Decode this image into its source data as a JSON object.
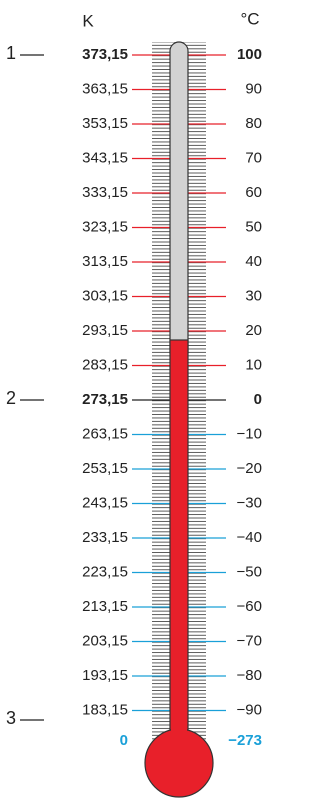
{
  "header": {
    "kelvin_label": "K",
    "celsius_label": "°C"
  },
  "markers": [
    "1",
    "2",
    "3"
  ],
  "rows": [
    {
      "kelvin": "373,15",
      "celsius": "100"
    },
    {
      "kelvin": "363,15",
      "celsius": "90"
    },
    {
      "kelvin": "353,15",
      "celsius": "80"
    },
    {
      "kelvin": "343,15",
      "celsius": "70"
    },
    {
      "kelvin": "333,15",
      "celsius": "60"
    },
    {
      "kelvin": "323,15",
      "celsius": "50"
    },
    {
      "kelvin": "313,15",
      "celsius": "40"
    },
    {
      "kelvin": "303,15",
      "celsius": "30"
    },
    {
      "kelvin": "293,15",
      "celsius": "20"
    },
    {
      "kelvin": "283,15",
      "celsius": "10"
    },
    {
      "kelvin": "273,15",
      "celsius": "0"
    },
    {
      "kelvin": "263,15",
      "celsius": "−10"
    },
    {
      "kelvin": "253,15",
      "celsius": "−20"
    },
    {
      "kelvin": "243,15",
      "celsius": "−30"
    },
    {
      "kelvin": "233,15",
      "celsius": "−40"
    },
    {
      "kelvin": "223,15",
      "celsius": "−50"
    },
    {
      "kelvin": "213,15",
      "celsius": "−60"
    },
    {
      "kelvin": "203,15",
      "celsius": "−70"
    },
    {
      "kelvin": "193,15",
      "celsius": "−80"
    },
    {
      "kelvin": "183,15",
      "celsius": "−90"
    },
    {
      "kelvin": "0",
      "celsius": "−273"
    }
  ]
}
